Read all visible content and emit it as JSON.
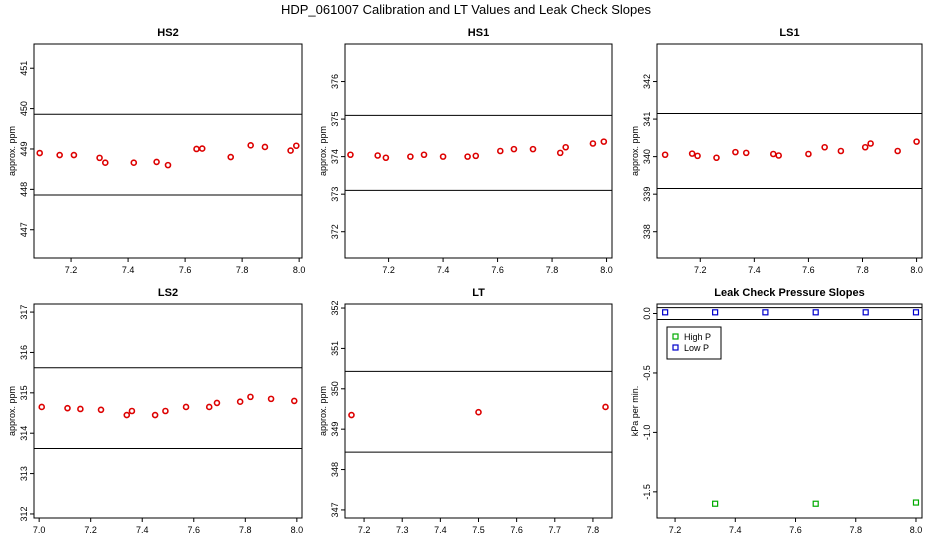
{
  "figure": {
    "title": "HDP_061007 Calibration and LT Values and Leak Check Slopes"
  },
  "colors": {
    "points": "#dd0000",
    "high": "#00aa00",
    "low": "#0000cc",
    "frame": "#000000"
  },
  "chart_data": [
    {
      "type": "scatter",
      "title": "HS2",
      "ylabel": "approx. ppm",
      "xlim": [
        7.07,
        8.01
      ],
      "ylim": [
        446.3,
        451.6
      ],
      "xticks": [
        7.2,
        7.4,
        7.6,
        7.8,
        8.0
      ],
      "xtick_labels": [
        "7.2",
        "7.4",
        "7.6",
        "7.8",
        "8.0"
      ],
      "yticks": [
        447,
        448,
        449,
        450,
        451
      ],
      "ytick_labels": [
        "447",
        "448",
        "449",
        "450",
        "451"
      ],
      "hlines": [
        449.86,
        447.86
      ],
      "x": [
        7.09,
        7.16,
        7.21,
        7.3,
        7.32,
        7.42,
        7.5,
        7.54,
        7.64,
        7.66,
        7.76,
        7.83,
        7.88,
        7.97,
        7.99
      ],
      "y": [
        448.9,
        448.85,
        448.85,
        448.78,
        448.66,
        448.66,
        448.68,
        448.6,
        449.0,
        449.01,
        448.8,
        449.09,
        449.05,
        448.96,
        449.08
      ]
    },
    {
      "type": "scatter",
      "title": "HS1",
      "ylabel": "approx. ppm",
      "xlim": [
        7.04,
        8.02
      ],
      "ylim": [
        371.3,
        377.0
      ],
      "xticks": [
        7.2,
        7.4,
        7.6,
        7.8,
        8.0
      ],
      "xtick_labels": [
        "7.2",
        "7.4",
        "7.6",
        "7.8",
        "8.0"
      ],
      "yticks": [
        372,
        373,
        374,
        375,
        376
      ],
      "ytick_labels": [
        "372",
        "373",
        "374",
        "375",
        "376"
      ],
      "hlines": [
        375.1,
        373.1
      ],
      "x": [
        7.06,
        7.16,
        7.19,
        7.28,
        7.33,
        7.4,
        7.49,
        7.52,
        7.61,
        7.66,
        7.73,
        7.83,
        7.85,
        7.95,
        7.99
      ],
      "y": [
        374.05,
        374.03,
        373.97,
        374.0,
        374.05,
        374.0,
        374.0,
        374.02,
        374.15,
        374.2,
        374.2,
        374.1,
        374.25,
        374.35,
        374.4
      ]
    },
    {
      "type": "scatter",
      "title": "LS1",
      "ylabel": "approx. ppm",
      "xlim": [
        7.04,
        8.02
      ],
      "ylim": [
        337.3,
        343.0
      ],
      "xticks": [
        7.2,
        7.4,
        7.6,
        7.8,
        8.0
      ],
      "xtick_labels": [
        "7.2",
        "7.4",
        "7.6",
        "7.8",
        "8.0"
      ],
      "yticks": [
        338,
        339,
        340,
        341,
        342
      ],
      "ytick_labels": [
        "338",
        "339",
        "340",
        "341",
        "342"
      ],
      "hlines": [
        341.15,
        339.15
      ],
      "x": [
        7.07,
        7.17,
        7.19,
        7.26,
        7.33,
        7.37,
        7.47,
        7.49,
        7.6,
        7.66,
        7.72,
        7.81,
        7.83,
        7.93,
        8.0
      ],
      "y": [
        340.05,
        340.08,
        340.02,
        339.97,
        340.12,
        340.1,
        340.07,
        340.03,
        340.07,
        340.25,
        340.15,
        340.25,
        340.35,
        340.15,
        340.4
      ]
    },
    {
      "type": "scatter",
      "title": "LS2",
      "ylabel": "approx. ppm",
      "xlim": [
        6.98,
        8.02
      ],
      "ylim": [
        311.9,
        317.2
      ],
      "xticks": [
        7.0,
        7.2,
        7.4,
        7.6,
        7.8,
        8.0
      ],
      "xtick_labels": [
        "7.0",
        "7.2",
        "7.4",
        "7.6",
        "7.8",
        "8.0"
      ],
      "yticks": [
        312,
        313,
        314,
        315,
        316,
        317
      ],
      "ytick_labels": [
        "312",
        "313",
        "314",
        "315",
        "316",
        "317"
      ],
      "hlines": [
        315.62,
        313.62
      ],
      "x": [
        7.01,
        7.11,
        7.16,
        7.24,
        7.34,
        7.36,
        7.45,
        7.49,
        7.57,
        7.66,
        7.69,
        7.78,
        7.82,
        7.9,
        7.99
      ],
      "y": [
        314.65,
        314.62,
        314.6,
        314.58,
        314.45,
        314.55,
        314.45,
        314.55,
        314.65,
        314.65,
        314.75,
        314.78,
        314.9,
        314.85,
        314.8
      ]
    },
    {
      "type": "scatter",
      "title": "LT",
      "ylabel": "approx. ppm",
      "xlim": [
        7.15,
        7.85
      ],
      "ylim": [
        346.8,
        352.1
      ],
      "xticks": [
        7.2,
        7.3,
        7.4,
        7.5,
        7.6,
        7.7,
        7.8
      ],
      "xtick_labels": [
        "7.2",
        "7.3",
        "7.4",
        "7.5",
        "7.6",
        "7.7",
        "7.8"
      ],
      "yticks": [
        347,
        348,
        349,
        350,
        351,
        352
      ],
      "ytick_labels": [
        "347",
        "348",
        "349",
        "350",
        "351",
        "352"
      ],
      "hlines": [
        350.43,
        348.43
      ],
      "x": [
        7.167,
        7.5,
        7.833
      ],
      "y": [
        349.35,
        349.42,
        349.55
      ]
    },
    {
      "type": "scatter",
      "title": "Leak Check Pressure Slopes",
      "ylabel": "kPa per min.",
      "xlim": [
        7.14,
        8.02
      ],
      "ylim": [
        -1.72,
        0.08
      ],
      "xticks": [
        7.2,
        7.4,
        7.6,
        7.8,
        8.0
      ],
      "xtick_labels": [
        "7.2",
        "7.4",
        "7.6",
        "7.8",
        "8.0"
      ],
      "yticks": [
        -1.5,
        -1.0,
        -0.5,
        0.0
      ],
      "ytick_labels": [
        "-1.5",
        "-1.0",
        "-0.5",
        "0.0"
      ],
      "hlines": [
        0.05,
        -0.05
      ],
      "legend_position": "top-left",
      "series": [
        {
          "name": "High P",
          "x": [
            7.333,
            7.667,
            8.0
          ],
          "y": [
            -1.6,
            -1.6,
            -1.59
          ]
        },
        {
          "name": "Low P",
          "x": [
            7.167,
            7.333,
            7.5,
            7.667,
            7.833,
            8.0
          ],
          "y": [
            0.01,
            0.01,
            0.01,
            0.01,
            0.01,
            0.01
          ]
        }
      ]
    }
  ]
}
